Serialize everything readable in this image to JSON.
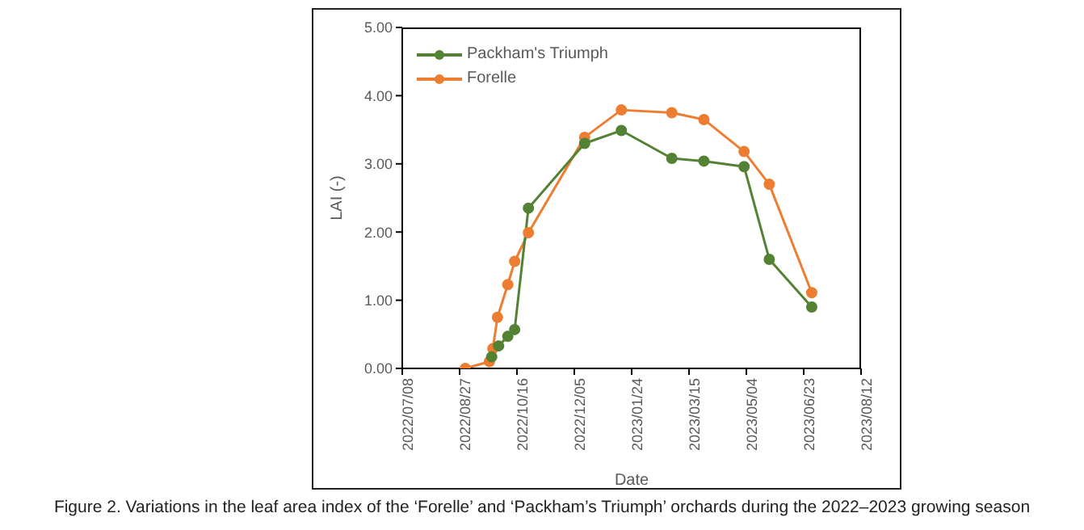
{
  "chart_data": {
    "type": "line",
    "xlabel": "Date",
    "ylabel": "LAI (-)",
    "annotations": [
      "Figure 2. Variations in the leaf area index of the ‘Forelle’ and ‘Packham’s Triumph’ orchards during the 2022–2023 growing season"
    ],
    "series": [
      {
        "name": "Packham's Triumph",
        "color": "#548235",
        "x": [
          "2022-09-24",
          "2022-09-30",
          "2022-10-08",
          "2022-10-14",
          "2022-10-26",
          "2022-12-14",
          "2023-01-15",
          "2023-02-28",
          "2023-03-28",
          "2023-05-02",
          "2023-05-24",
          "2023-06-30"
        ],
        "values": [
          0.17,
          0.33,
          0.47,
          0.57,
          2.35,
          3.3,
          3.49,
          3.08,
          3.04,
          2.96,
          1.6,
          0.9
        ]
      },
      {
        "name": "Forelle",
        "color": "#ed7d31",
        "x": [
          "2022-09-01",
          "2022-09-22",
          "2022-09-25",
          "2022-09-29",
          "2022-10-08",
          "2022-10-14",
          "2022-10-26",
          "2022-12-14",
          "2023-01-15",
          "2023-02-28",
          "2023-03-28",
          "2023-05-02",
          "2023-05-24",
          "2023-06-30"
        ],
        "values": [
          0,
          0.1,
          0.29,
          0.75,
          1.23,
          1.57,
          1.99,
          3.39,
          3.79,
          3.75,
          3.65,
          3.18,
          2.7,
          1.11
        ]
      }
    ],
    "xlim": [
      "2022-07-08",
      "2023-08-12"
    ],
    "xticks": [
      {
        "value": "2022-07-08",
        "label": "2022/07/08"
      },
      {
        "value": "2022-08-27",
        "label": "2022/08/27"
      },
      {
        "value": "2022-10-16",
        "label": "2022/10/16"
      },
      {
        "value": "2022-12-05",
        "label": "2022/12/05"
      },
      {
        "value": "2023-01-24",
        "label": "2023/01/24"
      },
      {
        "value": "2023-03-15",
        "label": "2023/03/15"
      },
      {
        "value": "2023-05-04",
        "label": "2023/05/04"
      },
      {
        "value": "2023-06-23",
        "label": "2023/06/23"
      },
      {
        "value": "2023-08-12",
        "label": "2023/08/12"
      }
    ],
    "ylim": [
      0,
      5
    ],
    "yticks": [
      {
        "value": 0,
        "label": "0.00"
      },
      {
        "value": 1,
        "label": "1.00"
      },
      {
        "value": 2,
        "label": "2.00"
      },
      {
        "value": 3,
        "label": "3.00"
      },
      {
        "value": 4,
        "label": "4.00"
      },
      {
        "value": 5,
        "label": "5.00"
      }
    ],
    "grid": false,
    "legend": "top left",
    "marker": "circle",
    "line_style": "solid"
  }
}
